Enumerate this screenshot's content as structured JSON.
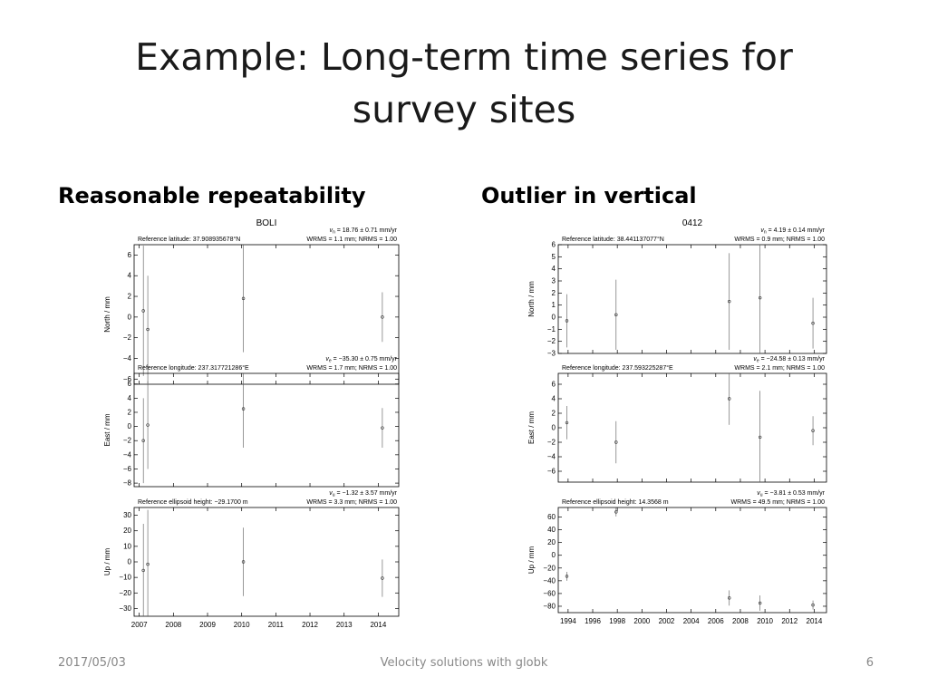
{
  "slide": {
    "title_line1": "Example: Long-term time series for",
    "title_line2": "survey sites",
    "left_heading": "Reasonable repeatability",
    "right_heading": "Outlier in vertical",
    "footer_date": "2017/05/03",
    "footer_center": "Velocity solutions with globk",
    "page_number": "6"
  },
  "chart_data": [
    {
      "type": "scatter",
      "site": "BOLI",
      "x_ticks": [
        "2007",
        "2008",
        "2009",
        "2010",
        "2011",
        "2012",
        "2013",
        "2014"
      ],
      "xlim": [
        2006.85,
        2014.6
      ],
      "panels": [
        {
          "ylabel": "North / mm",
          "reference": "Reference latitude: 37.908935678°N",
          "velocity_label": "v",
          "velocity_sub": "n",
          "velocity_value": " = 18.76 ± 0.71 mm/yr",
          "stats": "WRMS = 1.1 mm; NRMS = 1.00",
          "ylim": [
            -6.5,
            7
          ],
          "yticks": [
            -6,
            -4,
            -2,
            0,
            2,
            4,
            6
          ],
          "ytick_labels": [
            "−6",
            "−4",
            "−2",
            "0",
            "2",
            "4",
            "6"
          ],
          "points": [
            {
              "x": 2007.12,
              "y": 0.6,
              "err": 6.3
            },
            {
              "x": 2007.25,
              "y": -1.2,
              "err": 5.2
            },
            {
              "x": 2010.05,
              "y": 1.8,
              "err": 5.2
            },
            {
              "x": 2014.12,
              "y": 0.0,
              "err": 2.4
            }
          ]
        },
        {
          "ylabel": "East / mm",
          "reference": "Reference longitude: 237.317721286°E",
          "velocity_label": "v",
          "velocity_sub": "e",
          "velocity_value": " = −35.30 ± 0.75 mm/yr",
          "stats": "WRMS = 1.7 mm; NRMS = 1.00",
          "ylim": [
            -8.5,
            7.5
          ],
          "yticks": [
            -8,
            -6,
            -4,
            -2,
            0,
            2,
            4,
            6
          ],
          "ytick_labels": [
            "−8",
            "−6",
            "−4",
            "−2",
            "0",
            "2",
            "4",
            "6"
          ],
          "points": [
            {
              "x": 2007.12,
              "y": -2.0,
              "err": 6.0
            },
            {
              "x": 2007.25,
              "y": 0.2,
              "err": 6.2
            },
            {
              "x": 2010.05,
              "y": 2.5,
              "err": 5.5
            },
            {
              "x": 2014.12,
              "y": -0.2,
              "err": 2.8
            }
          ]
        },
        {
          "ylabel": "Up / mm",
          "reference": "Reference ellipsoid height: −29.1700 m",
          "velocity_label": "v",
          "velocity_sub": "u",
          "velocity_value": " = −1.32 ± 3.57 mm/yr",
          "stats": "WRMS = 3.3 mm; NRMS = 1.00",
          "ylim": [
            -35,
            35
          ],
          "yticks": [
            -30,
            -20,
            -10,
            0,
            10,
            20,
            30
          ],
          "ytick_labels": [
            "−30",
            "−20",
            "−10",
            "0",
            "10",
            "20",
            "30"
          ],
          "points": [
            {
              "x": 2007.12,
              "y": -5.5,
              "err": 30
            },
            {
              "x": 2007.25,
              "y": -1.5,
              "err": 35
            },
            {
              "x": 2010.05,
              "y": 0.0,
              "err": 22
            },
            {
              "x": 2014.12,
              "y": -10.5,
              "err": 12
            }
          ]
        }
      ]
    },
    {
      "type": "scatter",
      "site": "0412",
      "x_ticks": [
        "1994",
        "1996",
        "1998",
        "2000",
        "2002",
        "2004",
        "2006",
        "2008",
        "2010",
        "2012",
        "2014"
      ],
      "xlim": [
        1993.2,
        2015.0
      ],
      "panels": [
        {
          "ylabel": "North / mm",
          "reference": "Reference latitude: 38.441137077°N",
          "velocity_label": "v",
          "velocity_sub": "n",
          "velocity_value": " = 4.19 ± 0.14 mm/yr",
          "stats": "WRMS = 0.9 mm; NRMS = 1.00",
          "ylim": [
            -3,
            6
          ],
          "yticks": [
            -3,
            -2,
            -1,
            0,
            1,
            2,
            3,
            4,
            5,
            6
          ],
          "ytick_labels": [
            "−3",
            "−2",
            "−1",
            "0",
            "1",
            "2",
            "3",
            "4",
            "5",
            "6"
          ],
          "points": [
            {
              "x": 1993.9,
              "y": -0.3,
              "err": 2.2
            },
            {
              "x": 1997.9,
              "y": 0.2,
              "err": 2.9
            },
            {
              "x": 2007.1,
              "y": 1.3,
              "err": 4.0
            },
            {
              "x": 2009.6,
              "y": 1.6,
              "err": 4.6
            },
            {
              "x": 2013.9,
              "y": -0.5,
              "err": 2.1
            }
          ]
        },
        {
          "ylabel": "East / mm",
          "reference": "Reference longitude: 237.593225287°E",
          "velocity_label": "v",
          "velocity_sub": "e",
          "velocity_value": " = −24.58 ± 0.13 mm/yr",
          "stats": "WRMS = 2.1 mm; NRMS = 1.00",
          "ylim": [
            -7.5,
            7.5
          ],
          "yticks": [
            -6,
            -4,
            -2,
            0,
            2,
            4,
            6
          ],
          "ytick_labels": [
            "−6",
            "−4",
            "−2",
            "0",
            "2",
            "4",
            "6"
          ],
          "points": [
            {
              "x": 1993.9,
              "y": 0.7,
              "err": 2.3
            },
            {
              "x": 1997.9,
              "y": -2.0,
              "err": 2.9
            },
            {
              "x": 2007.1,
              "y": 4.0,
              "err": 3.6
            },
            {
              "x": 2009.6,
              "y": -1.3,
              "err": 6.4
            },
            {
              "x": 2013.9,
              "y": -0.4,
              "err": 2.0
            }
          ]
        },
        {
          "ylabel": "Up / mm",
          "reference": "Reference ellipsoid height: 14.3568 m",
          "velocity_label": "v",
          "velocity_sub": "u",
          "velocity_value": " = −3.81 ± 0.53 mm/yr",
          "stats": "WRMS = 49.5 mm; NRMS = 1.00",
          "ylim": [
            -90,
            75
          ],
          "yticks": [
            -80,
            -60,
            -40,
            -20,
            0,
            20,
            40,
            60
          ],
          "ytick_labels": [
            "−80",
            "−60",
            "−40",
            "−20",
            "0",
            "20",
            "40",
            "60"
          ],
          "points": [
            {
              "x": 1993.9,
              "y": -33,
              "err": 7
            },
            {
              "x": 1997.9,
              "y": 68,
              "err": 7
            },
            {
              "x": 2007.1,
              "y": -67,
              "err": 12
            },
            {
              "x": 2009.6,
              "y": -75,
              "err": 12
            },
            {
              "x": 2013.9,
              "y": -78,
              "err": 7
            }
          ]
        }
      ]
    }
  ]
}
